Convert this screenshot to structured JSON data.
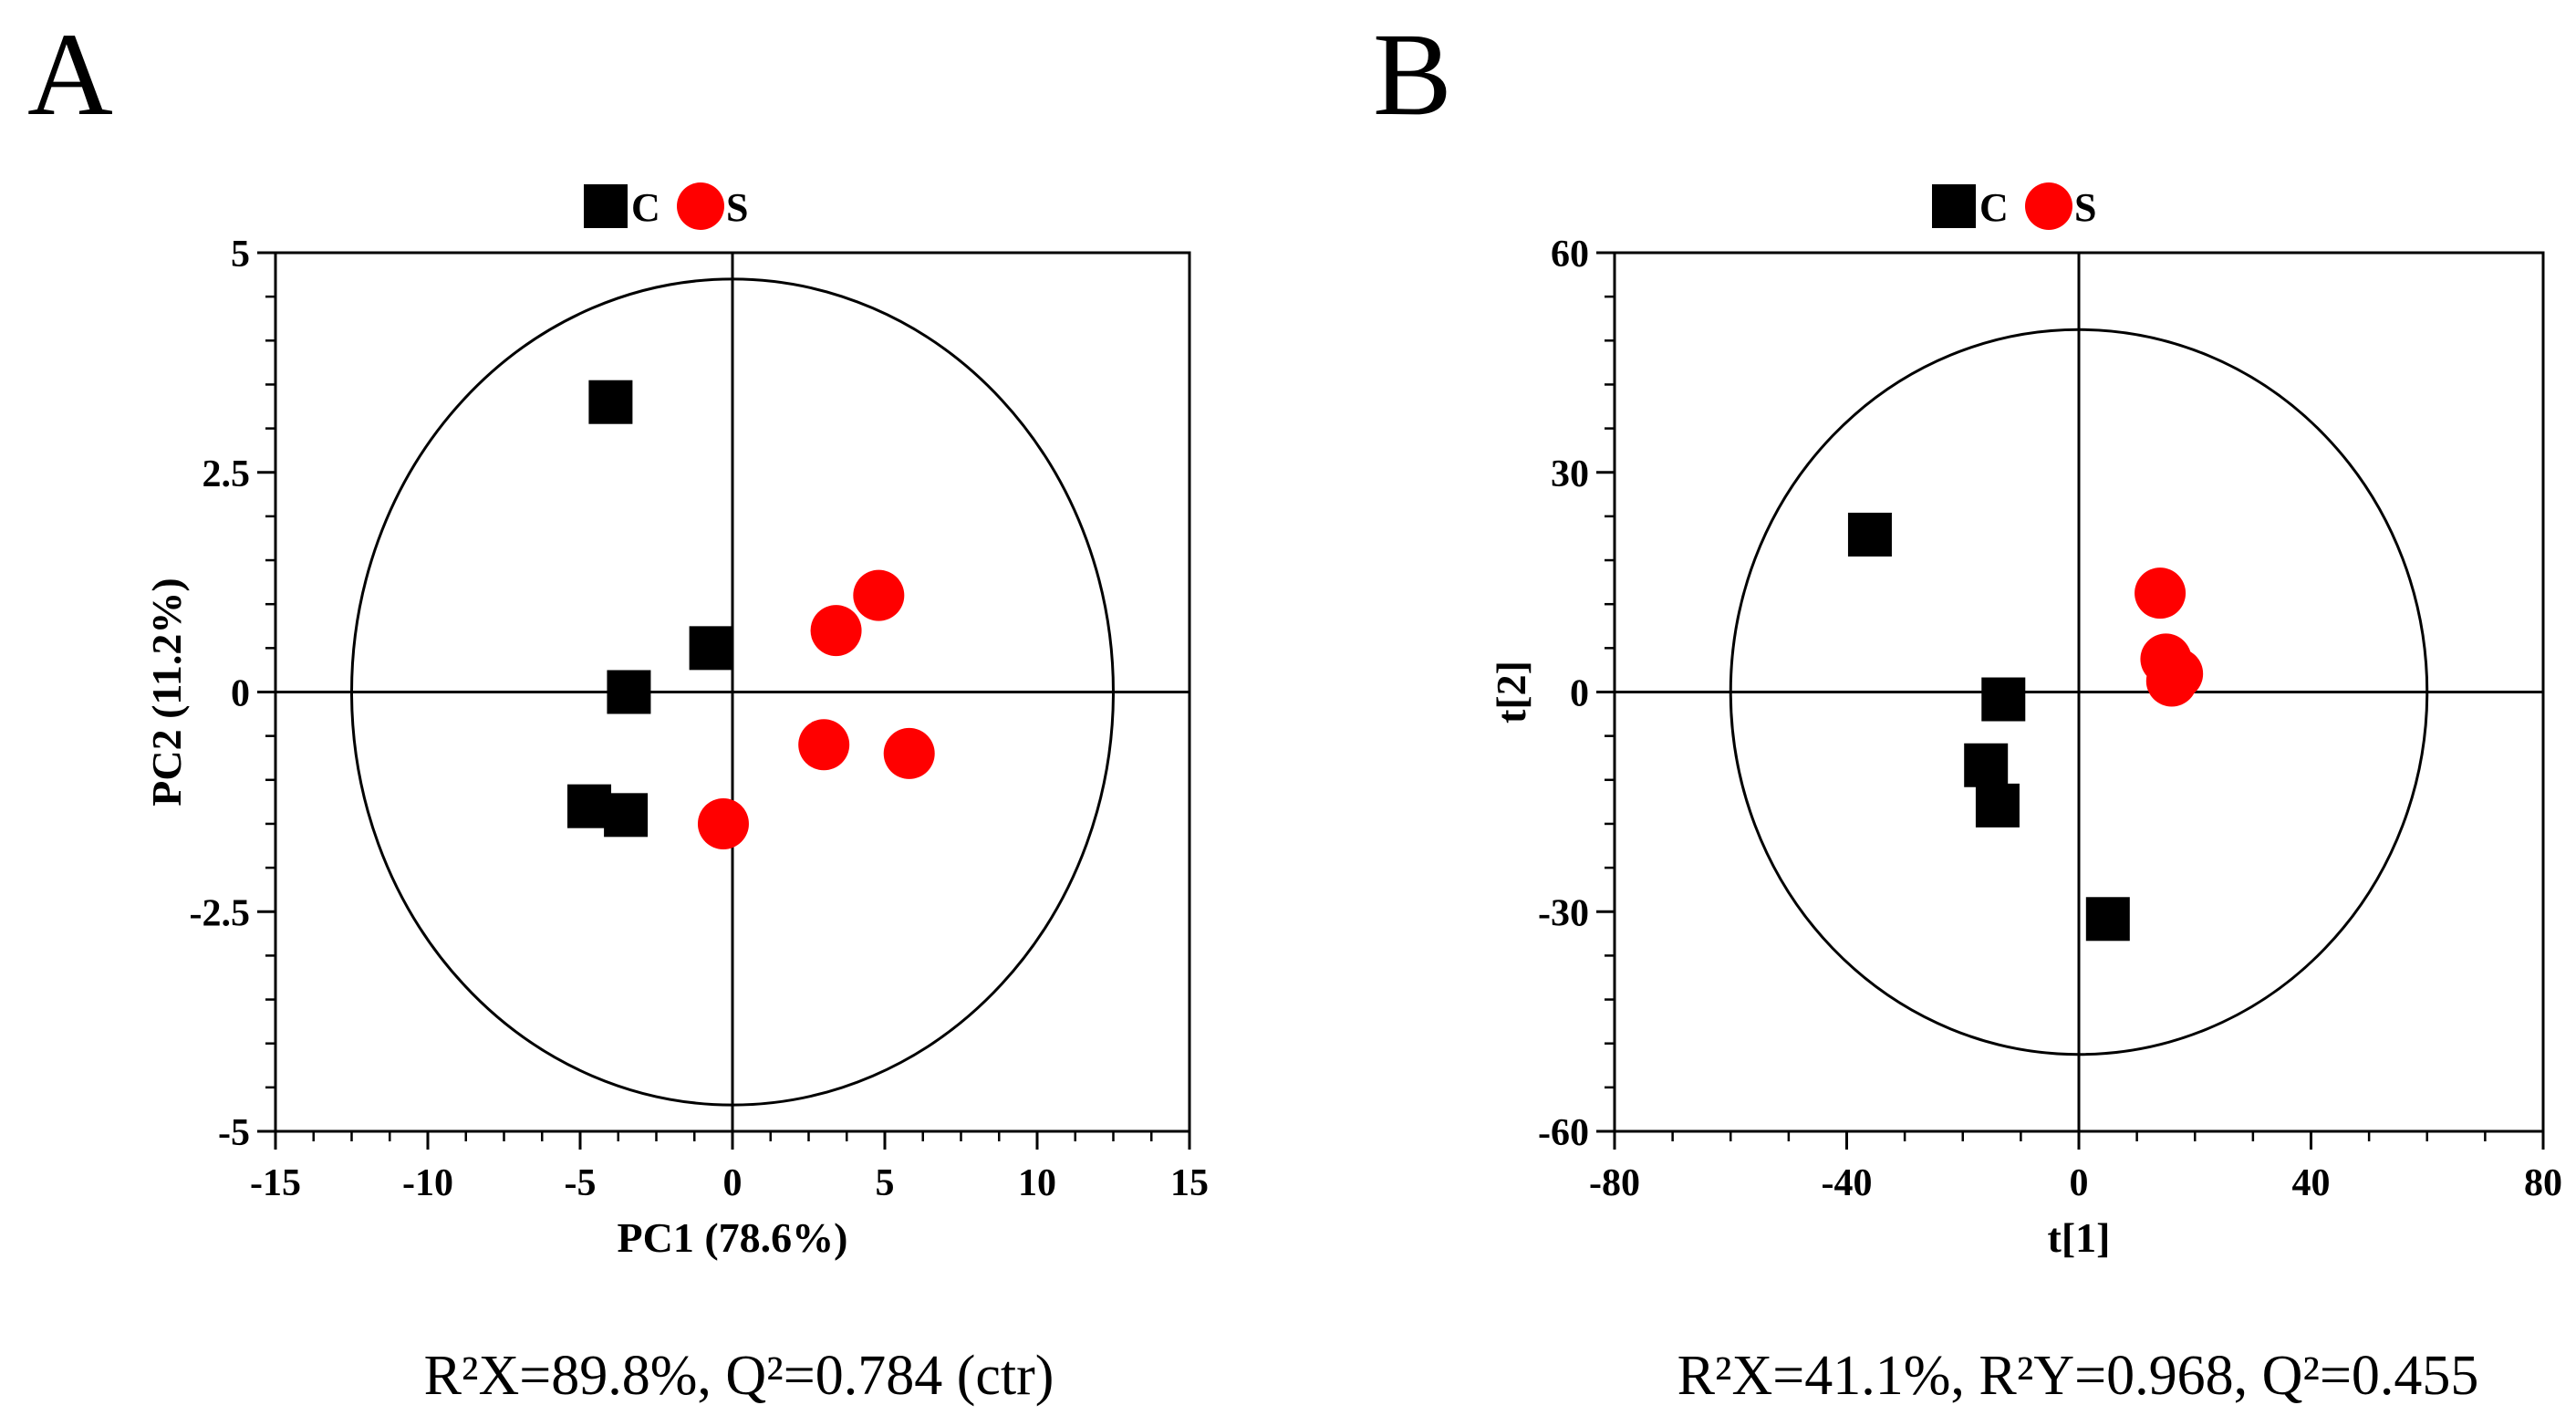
{
  "chart_data": [
    {
      "type": "scatter",
      "panel_label": "A",
      "xlabel": "PC1 (78.6%)",
      "ylabel": "PC2 (11.2%)",
      "xlim": [
        -15,
        15
      ],
      "ylim": [
        -5,
        5
      ],
      "xticks": [
        -15,
        -10,
        -5,
        0,
        5,
        10,
        15
      ],
      "xtick_labels": [
        "-15",
        "-10",
        "-5",
        "0",
        "5",
        "10",
        "15"
      ],
      "yticks": [
        -5,
        -2.5,
        0,
        2.5,
        5
      ],
      "ytick_labels": [
        "-5",
        "-2.5",
        "0",
        "2.5",
        "5"
      ],
      "ellipse": {
        "rx": 12.5,
        "ry": 4.7
      },
      "legend": [
        {
          "label": "C",
          "marker": "square",
          "color": "#000000"
        },
        {
          "label": "S",
          "marker": "circle",
          "color": "#ff0000"
        }
      ],
      "series": [
        {
          "name": "C",
          "marker": "square",
          "color": "#000000",
          "points": [
            [
              -4.0,
              3.3
            ],
            [
              -0.7,
              0.5
            ],
            [
              -3.4,
              0.0
            ],
            [
              -4.7,
              -1.3
            ],
            [
              -3.5,
              -1.4
            ]
          ]
        },
        {
          "name": "S",
          "marker": "circle",
          "color": "#ff0000",
          "points": [
            [
              4.8,
              1.1
            ],
            [
              3.4,
              0.7
            ],
            [
              3.0,
              -0.6
            ],
            [
              5.8,
              -0.7
            ],
            [
              -0.3,
              -1.5
            ]
          ]
        }
      ],
      "stats": "R²X=89.8%, Q²=0.784 (ctr)"
    },
    {
      "type": "scatter",
      "panel_label": "B",
      "xlabel": "t[1]",
      "ylabel": "t[2]",
      "xlim": [
        -80,
        80
      ],
      "ylim": [
        -60,
        60
      ],
      "xticks": [
        -80,
        -40,
        0,
        40,
        80
      ],
      "xtick_labels": [
        "-80",
        "-40",
        "0",
        "40",
        "80"
      ],
      "yticks": [
        -60,
        -30,
        0,
        30,
        60
      ],
      "ytick_labels": [
        "-60",
        "-30",
        "0",
        "30",
        "60"
      ],
      "ellipse": {
        "rx": 60,
        "ry": 49.5
      },
      "legend": [
        {
          "label": "C",
          "marker": "square",
          "color": "#000000"
        },
        {
          "label": "S",
          "marker": "circle",
          "color": "#ff0000"
        }
      ],
      "series": [
        {
          "name": "C",
          "marker": "square",
          "color": "#000000",
          "points": [
            [
              -36,
              21.5
            ],
            [
              -16,
              -10
            ],
            [
              -13,
              -1
            ],
            [
              -14,
              -15.5
            ],
            [
              5,
              -31
            ]
          ]
        },
        {
          "name": "S",
          "marker": "circle",
          "color": "#ff0000",
          "points": [
            [
              14,
              13.5
            ],
            [
              15,
              4.5
            ],
            [
              17,
              2.5
            ],
            [
              16,
              1.5
            ]
          ]
        }
      ],
      "stats": "R²X=41.1%, R²Y=0.968, Q²=0.455"
    }
  ]
}
